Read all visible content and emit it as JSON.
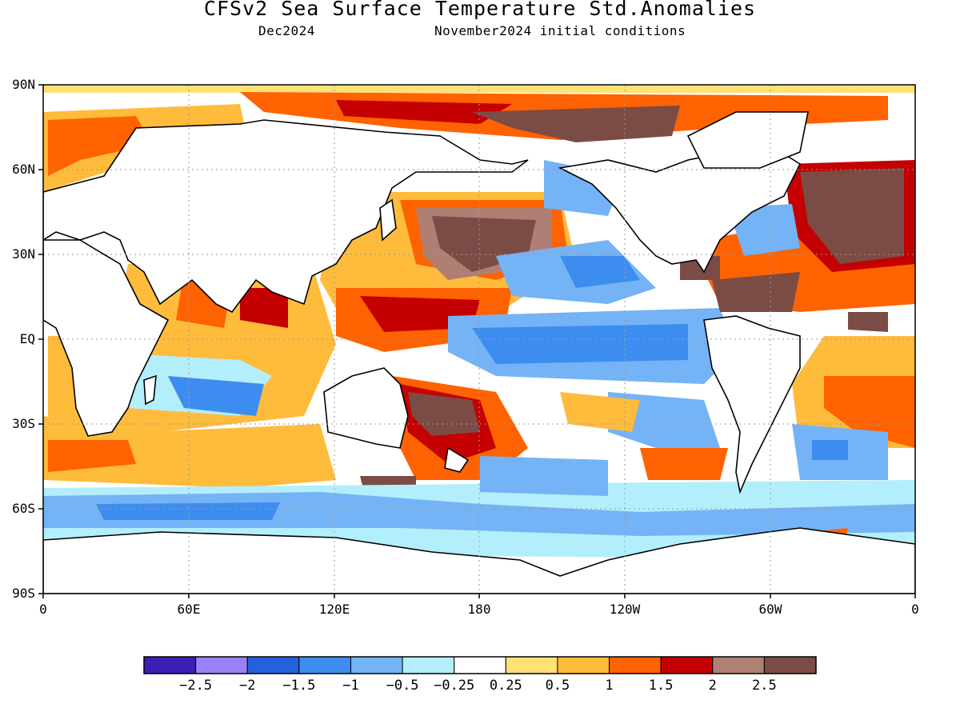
{
  "title": "CFSv2 Sea Surface Temperature Std.Anomalies",
  "subtitle_left": "Dec2024",
  "subtitle_right": "November2024 initial conditions",
  "y_axis_labels": [
    "90N",
    "60N",
    "30N",
    "EQ",
    "30S",
    "60S",
    "90S"
  ],
  "x_axis_labels": [
    "0",
    "60E",
    "120E",
    "180",
    "120W",
    "60W",
    "0"
  ],
  "colorbar": {
    "colors": [
      "#3b1fb4",
      "#9a80f8",
      "#2361dd",
      "#3d8df0",
      "#74b3f5",
      "#b3eefc",
      "#ffffff",
      "#ffe176",
      "#ffbb3c",
      "#ff6200",
      "#c40000",
      "#b07f73",
      "#7a4c45"
    ],
    "labels": [
      "-2.5",
      "-2",
      "-1.5",
      "-1",
      "-0.5",
      "-0.25",
      "0.25",
      "0.5",
      "1",
      "1.5",
      "2",
      "2.5"
    ]
  },
  "anomaly_regions": [
    {
      "name": "arctic-band",
      "level": 1.5
    },
    {
      "name": "north-pacific-warm",
      "level": 2.5
    },
    {
      "name": "western-pacific-warm",
      "level": 1.5
    },
    {
      "name": "equatorial-pacific-cool",
      "level": -1
    },
    {
      "name": "east-pacific-cool",
      "level": -0.5
    },
    {
      "name": "tasman-sea-warm",
      "level": 2.5
    },
    {
      "name": "north-atlantic-warm",
      "level": 2.5
    },
    {
      "name": "caribbean-warm",
      "level": 2.5
    },
    {
      "name": "south-atlantic-warm",
      "level": 1.5
    },
    {
      "name": "southern-ocean-cool",
      "level": -1
    },
    {
      "name": "indian-ocean-warm",
      "level": 1
    },
    {
      "name": "south-pacific-warm-patch",
      "level": 1
    },
    {
      "name": "weddell-warm",
      "level": 1.5
    }
  ]
}
